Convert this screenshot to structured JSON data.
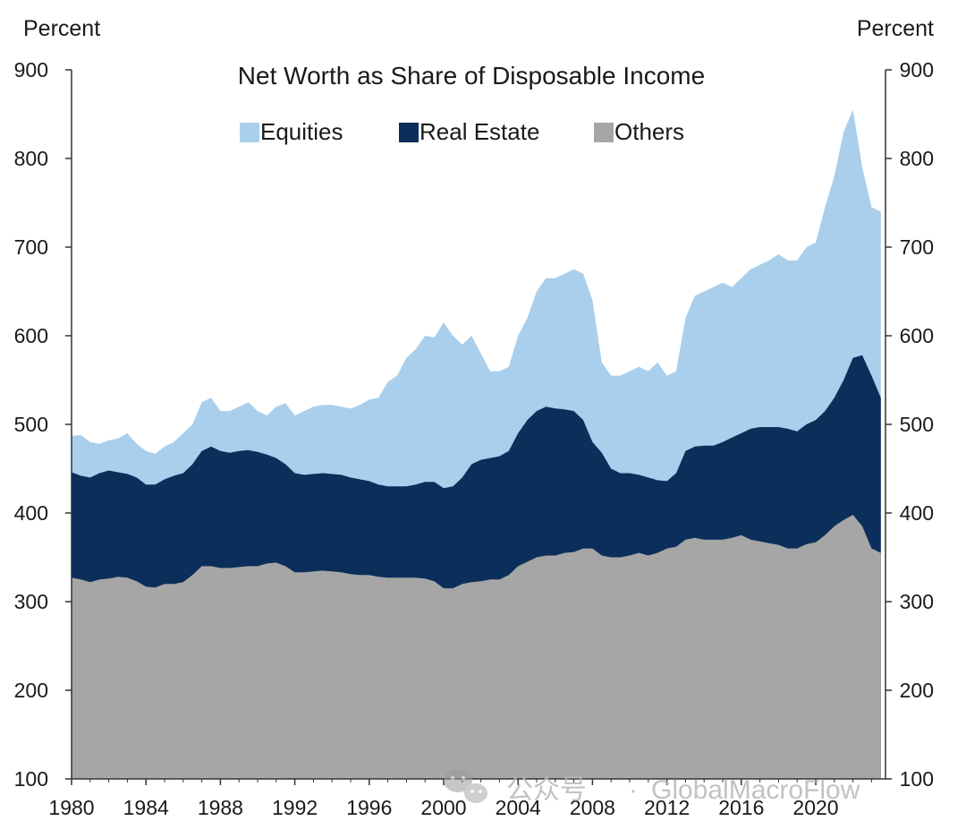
{
  "chart_data": {
    "type": "area",
    "title": "Net Worth as Share of Disposable Income",
    "ylabel_left": "Percent",
    "ylabel_right": "Percent",
    "xlim": [
      1980,
      2023.75
    ],
    "ylim": [
      100,
      900
    ],
    "yticks": [
      100,
      200,
      300,
      400,
      500,
      600,
      700,
      800,
      900
    ],
    "xticks": [
      1980,
      1984,
      1988,
      1992,
      1996,
      2000,
      2004,
      2008,
      2012,
      2016,
      2020
    ],
    "stacked": true,
    "legend_position": "top-center",
    "x": [
      1980,
      1980.5,
      1981,
      1981.5,
      1982,
      1982.5,
      1983,
      1983.5,
      1984,
      1984.5,
      1985,
      1985.5,
      1986,
      1986.5,
      1987,
      1987.5,
      1988,
      1988.5,
      1989,
      1989.5,
      1990,
      1990.5,
      1991,
      1991.5,
      1992,
      1992.5,
      1993,
      1993.5,
      1994,
      1994.5,
      1995,
      1995.5,
      1996,
      1996.5,
      1997,
      1997.5,
      1998,
      1998.5,
      1999,
      1999.5,
      2000,
      2000.5,
      2001,
      2001.5,
      2002,
      2002.5,
      2003,
      2003.5,
      2004,
      2004.5,
      2005,
      2005.5,
      2006,
      2006.5,
      2007,
      2007.5,
      2008,
      2008.5,
      2009,
      2009.5,
      2010,
      2010.5,
      2011,
      2011.5,
      2012,
      2012.5,
      2013,
      2013.5,
      2014,
      2014.5,
      2015,
      2015.5,
      2016,
      2016.5,
      2017,
      2017.5,
      2018,
      2018.5,
      2019,
      2019.5,
      2020,
      2020.5,
      2021,
      2021.5,
      2022,
      2022.5,
      2023,
      2023.5
    ],
    "series": [
      {
        "name": "Others",
        "color": "#a6a6a6",
        "values": [
          327,
          325,
          322,
          325,
          326,
          328,
          327,
          323,
          317,
          316,
          320,
          320,
          322,
          330,
          340,
          340,
          338,
          338,
          339,
          340,
          340,
          343,
          344,
          340,
          333,
          333,
          334,
          335,
          334,
          333,
          331,
          330,
          330,
          328,
          327,
          327,
          327,
          327,
          326,
          323,
          315,
          315,
          320,
          322,
          323,
          325,
          325,
          330,
          340,
          345,
          350,
          352,
          352,
          355,
          356,
          360,
          360,
          352,
          350,
          350,
          352,
          355,
          352,
          355,
          360,
          362,
          370,
          372,
          370,
          370,
          370,
          372,
          375,
          370,
          368,
          366,
          364,
          360,
          360,
          365,
          367,
          375,
          385,
          392,
          398,
          385,
          360,
          355
        ]
      },
      {
        "name": "Real Estate",
        "color": "#0b2f5a",
        "values": [
          446,
          442,
          440,
          445,
          448,
          446,
          444,
          440,
          432,
          432,
          438,
          442,
          445,
          455,
          470,
          475,
          470,
          468,
          470,
          471,
          469,
          466,
          462,
          455,
          445,
          443,
          444,
          445,
          444,
          443,
          440,
          438,
          436,
          432,
          430,
          430,
          430,
          432,
          435,
          435,
          428,
          430,
          440,
          455,
          460,
          462,
          464,
          470,
          490,
          505,
          515,
          520,
          518,
          517,
          515,
          505,
          480,
          468,
          450,
          445,
          445,
          443,
          440,
          437,
          436,
          445,
          470,
          475,
          476,
          476,
          480,
          485,
          490,
          495,
          497,
          497,
          497,
          495,
          492,
          500,
          505,
          515,
          530,
          550,
          575,
          578,
          555,
          530
        ]
      },
      {
        "name": "Equities",
        "color": "#a9cfec",
        "values": [
          487,
          488,
          480,
          478,
          482,
          484,
          490,
          478,
          470,
          467,
          475,
          480,
          490,
          500,
          525,
          530,
          515,
          515,
          520,
          525,
          515,
          510,
          520,
          524,
          510,
          515,
          520,
          522,
          522,
          520,
          518,
          522,
          528,
          530,
          548,
          555,
          575,
          585,
          600,
          598,
          615,
          600,
          590,
          600,
          580,
          560,
          560,
          565,
          600,
          620,
          650,
          665,
          665,
          670,
          675,
          670,
          640,
          570,
          555,
          555,
          560,
          565,
          560,
          570,
          555,
          560,
          620,
          645,
          650,
          655,
          660,
          655,
          665,
          675,
          680,
          685,
          692,
          685,
          685,
          700,
          705,
          745,
          780,
          830,
          855,
          790,
          745,
          740
        ]
      }
    ]
  },
  "watermark": {
    "channel_label": "公众号",
    "separator": "·",
    "account": "GlobalMacroFlow"
  }
}
